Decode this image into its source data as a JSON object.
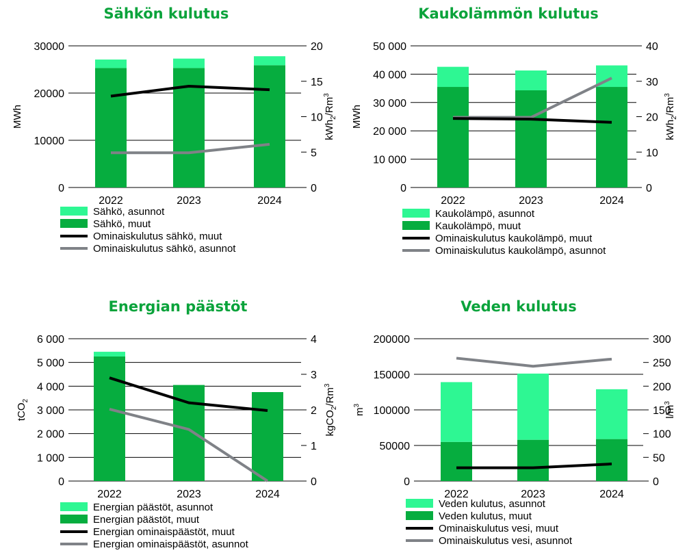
{
  "colors": {
    "title": "#0aa33b",
    "bar_bottom": "#06ad3f",
    "bar_top": "#2ef793",
    "line_dark": "#000000",
    "line_gray": "#7f8287"
  },
  "chart_data": [
    {
      "type": "bar+line",
      "title": "Sähkön kulutus",
      "categories": [
        "2022",
        "2023",
        "2024"
      ],
      "ylabel": "MWh",
      "y2label_parts": [
        "kWh",
        "2",
        "/Rm",
        "3"
      ],
      "ylim": [
        0,
        30000
      ],
      "y2lim": [
        0,
        20
      ],
      "yticks": [
        "0",
        "10000",
        "20000",
        "30000"
      ],
      "y2ticks": [
        "0",
        "5",
        "10",
        "15",
        "20"
      ],
      "bar_series": [
        {
          "name": "Sähkö, muut",
          "values": [
            25300,
            25300,
            25900
          ]
        },
        {
          "name": "Sähkö, asunnot",
          "values": [
            1800,
            2000,
            1900
          ]
        }
      ],
      "line_series": [
        {
          "name": "Ominaiskulutus sähkö, muut",
          "values": [
            12.9,
            14.3,
            13.8
          ]
        },
        {
          "name": "Ominaiskulutus sähkö, asunnot",
          "values": [
            4.9,
            4.9,
            6.1
          ]
        }
      ]
    },
    {
      "type": "bar+line",
      "title": "Kaukolämmön kulutus",
      "categories": [
        "2022",
        "2023",
        "2024"
      ],
      "ylabel": "MWh",
      "y2label_parts": [
        "kWh",
        "2",
        "/Rm",
        "3"
      ],
      "ylim": [
        0,
        50000
      ],
      "y2lim": [
        0,
        40
      ],
      "yticks": [
        "0",
        "10 000",
        "20 000",
        "30 000",
        "40 000",
        "50 000"
      ],
      "y2ticks": [
        "0",
        "10",
        "20",
        "30",
        "40"
      ],
      "bar_series": [
        {
          "name": "Kaukolämpö, muut",
          "values": [
            35500,
            34300,
            35500
          ]
        },
        {
          "name": "Kaukolämpö, asunnot",
          "values": [
            7100,
            7000,
            7600
          ]
        }
      ],
      "line_series": [
        {
          "name": "Ominaiskulutus kaukolämpö, muut",
          "values": [
            19.5,
            19.3,
            18.4
          ]
        },
        {
          "name": "Ominaiskulutus kaukolämpö, asunnot",
          "values": [
            19.8,
            19.8,
            30.9
          ]
        }
      ]
    },
    {
      "type": "bar+line",
      "title": "Energian päästöt",
      "categories": [
        "2022",
        "2023",
        "2024"
      ],
      "ylabel_parts": [
        "tCO",
        "2"
      ],
      "y2label_parts": [
        "kgCO",
        "2",
        "/Rm",
        "3"
      ],
      "ylim": [
        0,
        6000
      ],
      "y2lim": [
        0,
        4
      ],
      "yticks": [
        "0",
        "1 000",
        "2 000",
        "3 000",
        "4 000",
        "5 000",
        "6 000"
      ],
      "y2ticks": [
        "0",
        "1",
        "2",
        "3",
        "4"
      ],
      "bar_series": [
        {
          "name": "Energian päästöt, muut",
          "values": [
            5250,
            4050,
            3750
          ]
        },
        {
          "name": "Energian päästöt, asunnot",
          "values": [
            200,
            0,
            0
          ]
        }
      ],
      "line_series": [
        {
          "name": "Energian ominaispäästöt, muut",
          "values": [
            2.9,
            2.2,
            1.98
          ]
        },
        {
          "name": "Energian ominaispäästöt, asunnot",
          "values": [
            2.02,
            1.45,
            0
          ]
        }
      ]
    },
    {
      "type": "bar+line",
      "title": "Veden kulutus",
      "categories": [
        "2022",
        "2023",
        "2024"
      ],
      "ylabel_parts": [
        "m",
        "3"
      ],
      "y2label_parts": [
        "l/m",
        "3"
      ],
      "ylim": [
        0,
        200000
      ],
      "y2lim": [
        0,
        300
      ],
      "yticks": [
        "0",
        "50000",
        "100000",
        "150000",
        "200000"
      ],
      "y2ticks": [
        "0",
        "50",
        "100",
        "150",
        "200",
        "250",
        "300"
      ],
      "bar_series": [
        {
          "name": "Veden kulutus, muut",
          "values": [
            55000,
            58000,
            59000
          ]
        },
        {
          "name": "Veden kulutus, asunnot",
          "values": [
            84000,
            93000,
            70000
          ]
        }
      ],
      "line_series": [
        {
          "name": "Ominaiskulutus vesi, muut",
          "values": [
            28,
            28,
            36
          ]
        },
        {
          "name": "Ominaiskulutus vesi, asunnot",
          "values": [
            259,
            242,
            257
          ]
        }
      ]
    }
  ]
}
